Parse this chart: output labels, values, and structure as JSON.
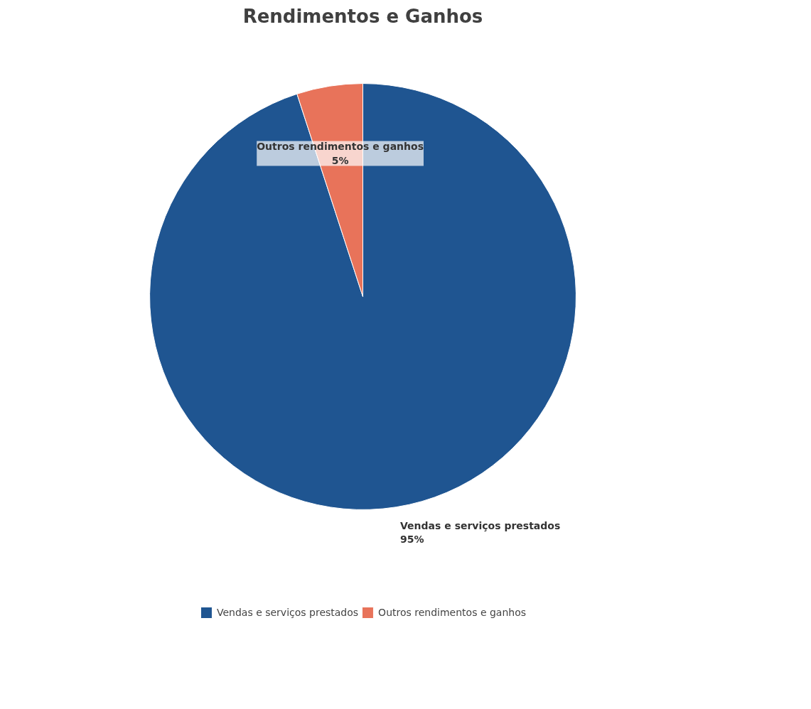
{
  "chart_data": {
    "type": "pie",
    "title": "Rendimentos e Ganhos",
    "categories": [
      "Vendas e serviços prestados",
      "Outros rendimentos e ganhos"
    ],
    "values": [
      95,
      5
    ],
    "colors": [
      "#1f5591",
      "#e8735a"
    ],
    "value_labels": [
      "95%",
      "5%"
    ],
    "legend": "bottom"
  }
}
